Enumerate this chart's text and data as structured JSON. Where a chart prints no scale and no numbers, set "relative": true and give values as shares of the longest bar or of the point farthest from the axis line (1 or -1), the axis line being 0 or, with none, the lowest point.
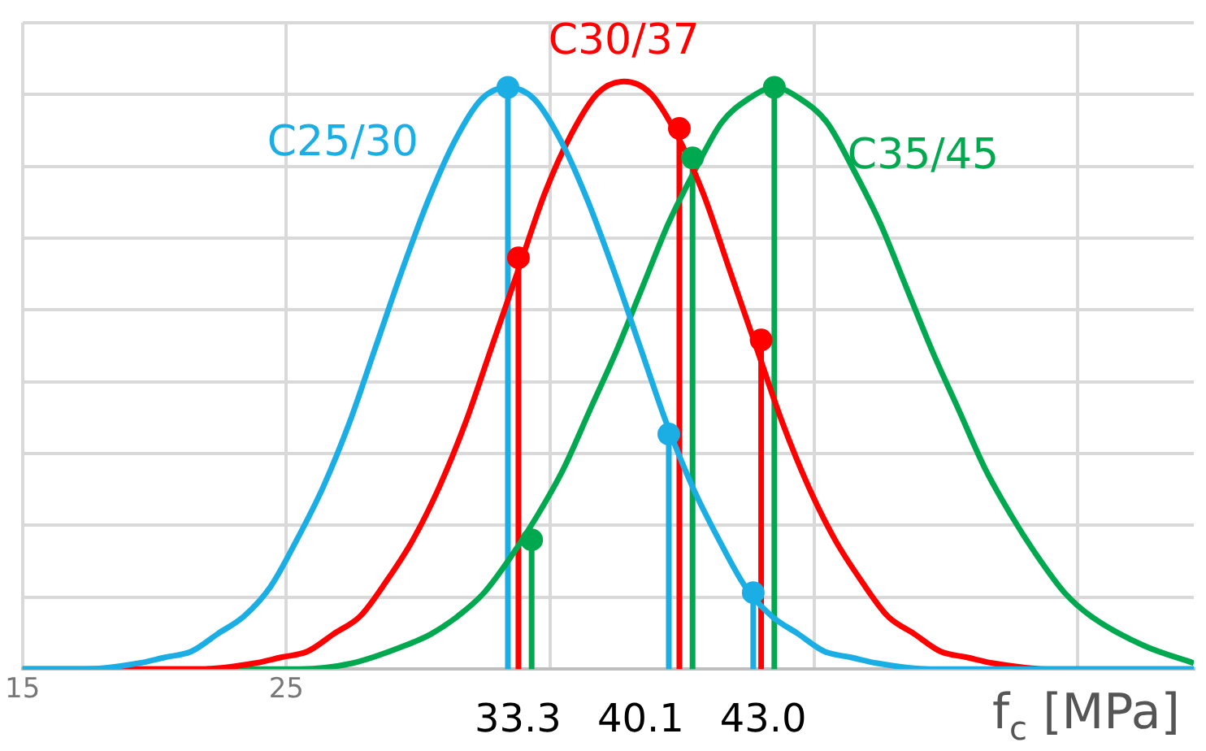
{
  "chart_data": {
    "type": "line",
    "relative": true,
    "xlabel": "f$_{c}$ [MPa]",
    "xlim": [
      15,
      59.4
    ],
    "xticks": [
      15,
      25,
      {
        "value": 35,
        "label": null
      },
      {
        "value": 45,
        "label": null
      },
      {
        "value": 55,
        "label": null
      }
    ],
    "grid": true,
    "legend": false,
    "marker": "none",
    "line_style": "solid",
    "series": [
      {
        "name": "C25/30",
        "color": "#1aaee5",
        "x": [
          15,
          17.4,
          19.4,
          20.4,
          21.4,
          22.4,
          23.4,
          24.4,
          25.4,
          26.4,
          27.4,
          28.4,
          29.4,
          30.4,
          31.4,
          32.4,
          33.4,
          34.4,
          35.4,
          36.4,
          37.4,
          38.4,
          39.4,
          40.4,
          41.4,
          42.4,
          43.4,
          44.4,
          45.4,
          46.4,
          47.4,
          49.4,
          51.4,
          59.4
        ],
        "values": [
          0,
          0,
          0.01,
          0.02,
          0.03,
          0.06,
          0.09,
          0.14,
          0.22,
          0.31,
          0.42,
          0.55,
          0.68,
          0.8,
          0.9,
          0.97,
          0.99,
          0.97,
          0.9,
          0.8,
          0.68,
          0.55,
          0.42,
          0.31,
          0.22,
          0.14,
          0.09,
          0.06,
          0.03,
          0.02,
          0.01,
          0,
          0,
          0
        ]
      },
      {
        "name": "C30/37",
        "color": "#ff0000",
        "x": [
          15,
          21.8,
          23.8,
          24.8,
          25.8,
          26.8,
          27.8,
          28.8,
          29.8,
          30.8,
          31.8,
          32.8,
          33.8,
          34.8,
          35.8,
          36.8,
          37.8,
          38.8,
          39.8,
          40.8,
          41.8,
          42.8,
          43.8,
          44.8,
          45.8,
          46.8,
          47.8,
          48.8,
          49.8,
          50.8,
          51.8,
          53.8,
          59.4
        ],
        "values": [
          0,
          0,
          0.01,
          0.02,
          0.03,
          0.06,
          0.09,
          0.15,
          0.22,
          0.31,
          0.42,
          0.55,
          0.68,
          0.81,
          0.91,
          0.98,
          1,
          0.98,
          0.91,
          0.81,
          0.68,
          0.55,
          0.42,
          0.31,
          0.22,
          0.15,
          0.09,
          0.06,
          0.03,
          0.02,
          0.01,
          0,
          0
        ]
      },
      {
        "name": "C35/45",
        "color": "#00a94f",
        "x": [
          15,
          23.5,
          25.5,
          27.5,
          29.5,
          30.5,
          31.5,
          32.5,
          33.5,
          34.5,
          35.5,
          36.5,
          37.5,
          38.5,
          39.5,
          40.5,
          41.5,
          42.5,
          43.5,
          44.5,
          45.5,
          46.5,
          47.5,
          48.5,
          49.5,
          50.5,
          51.5,
          52.5,
          53.5,
          54.5,
          55.5,
          57.5,
          59.4
        ],
        "values": [
          0,
          0,
          0,
          0.01,
          0.04,
          0.06,
          0.09,
          0.13,
          0.19,
          0.26,
          0.34,
          0.44,
          0.54,
          0.65,
          0.76,
          0.85,
          0.93,
          0.97,
          0.99,
          0.97,
          0.93,
          0.85,
          0.76,
          0.65,
          0.54,
          0.44,
          0.34,
          0.26,
          0.19,
          0.13,
          0.09,
          0.04,
          0.01
        ]
      },
      {
        "type": "lollipop",
        "marker": "circle",
        "color": "#1aaee5",
        "x": [
          33.4,
          39.5,
          42.7
        ],
        "values": [
          0.99,
          0.4,
          0.13
        ]
      },
      {
        "type": "lollipop",
        "marker": "circle",
        "color": "#ff0000",
        "x": [
          33.8,
          39.9,
          43.0
        ],
        "values": [
          0.7,
          0.92,
          0.56
        ]
      },
      {
        "type": "lollipop",
        "marker": "circle",
        "color": "#00a94f",
        "x": [
          34.3,
          40.4,
          43.5
        ],
        "values": [
          0.22,
          0.87,
          0.99
        ]
      }
    ],
    "annotations": [
      "33.3",
      "40.1",
      "43.0"
    ]
  }
}
